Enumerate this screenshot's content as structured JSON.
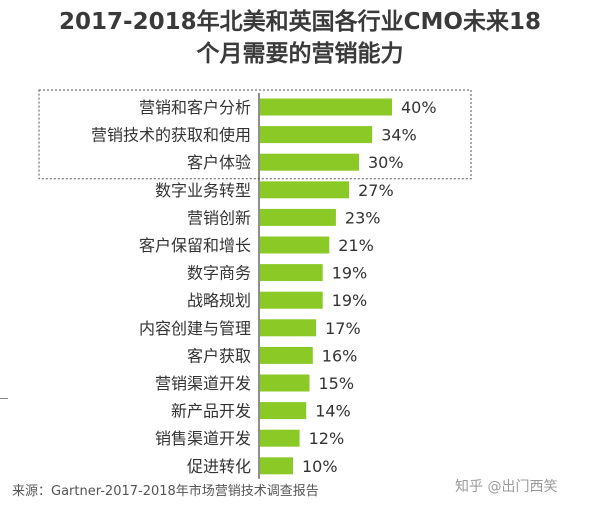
{
  "title_line1": "2017-2018年北美和英国各行业CMO未来18",
  "title_line2": "个月需要的营销能力",
  "source": "来源：Gartner-2017-2018年市场营销技术调查报告",
  "watermark": "知乎 @出门西笑",
  "chart_data": {
    "type": "bar",
    "orientation": "horizontal",
    "categories": [
      "营销和客户分析",
      "营销技术的获取和使用",
      "客户体验",
      "数字业务转型",
      "营销创新",
      "客户保留和增长",
      "数字商务",
      "战略规划",
      "内容创建与管理",
      "客户获取",
      "营销渠道开发",
      "新产品开发",
      "销售渠道开发",
      "促进转化"
    ],
    "values": [
      40,
      34,
      30,
      27,
      23,
      21,
      19,
      19,
      17,
      16,
      15,
      14,
      12,
      10
    ],
    "value_labels": [
      "40%",
      "34%",
      "30%",
      "27%",
      "23%",
      "21%",
      "19%",
      "19%",
      "17%",
      "16%",
      "15%",
      "14%",
      "12%",
      "10%"
    ],
    "highlighted_categories": [
      "营销和客户分析",
      "营销技术的获取和使用",
      "客户体验"
    ],
    "bar_color": "#8ac926",
    "axis_color": "#444444"
  }
}
